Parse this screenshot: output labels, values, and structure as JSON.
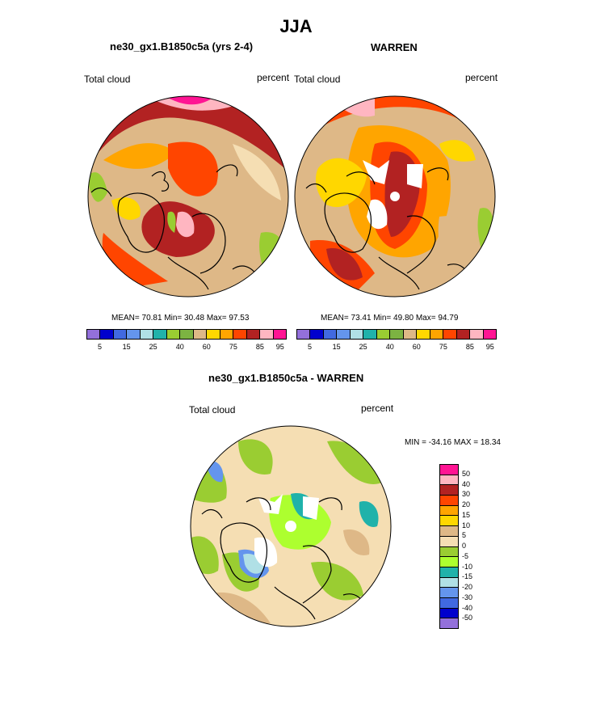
{
  "figure": {
    "title": "JJA"
  },
  "panels": [
    {
      "id": "model",
      "title": "ne30_gx1.B1850c5a (yrs 2-4)",
      "left_label": "Total cloud",
      "right_label": "percent",
      "stats": "MEAN=  70.81  Min=  30.48  Max=  97.53"
    },
    {
      "id": "obs",
      "title": "WARREN",
      "left_label": "Total cloud",
      "right_label": "percent",
      "stats": "MEAN=  73.41  Min=  49.80  Max=  94.79"
    }
  ],
  "colorbar_top": {
    "colors": [
      "#9370db",
      "#0000cd",
      "#4169e1",
      "#6495ed",
      "#b0e0e6",
      "#20b2aa",
      "#9acd32",
      "#7cb342",
      "#deb887",
      "#ffd700",
      "#ffa500",
      "#ff4500",
      "#b22222",
      "#ffb6c1",
      "#ff1493"
    ],
    "tick_labels": [
      "5",
      "15",
      "25",
      "40",
      "60",
      "75",
      "85",
      "95"
    ]
  },
  "diff_panel": {
    "title": "ne30_gx1.B1850c5a - WARREN",
    "left_label": "Total cloud",
    "right_label": "percent",
    "minmax": "MIN = -34.16 MAX =  18.34",
    "colorbar": {
      "colors": [
        "#ff1493",
        "#ffb6c1",
        "#b22222",
        "#ff4500",
        "#ffa500",
        "#ffd700",
        "#deb887",
        "#f5deb3",
        "#9acd32",
        "#adff2f",
        "#20b2aa",
        "#b0e0e6",
        "#6495ed",
        "#4169e1",
        "#0000cd",
        "#9370db"
      ],
      "tick_labels": [
        "50",
        "40",
        "30",
        "20",
        "15",
        "10",
        "5",
        "0",
        "-5",
        "-10",
        "-15",
        "-20",
        "-30",
        "-40",
        "-50"
      ]
    }
  }
}
